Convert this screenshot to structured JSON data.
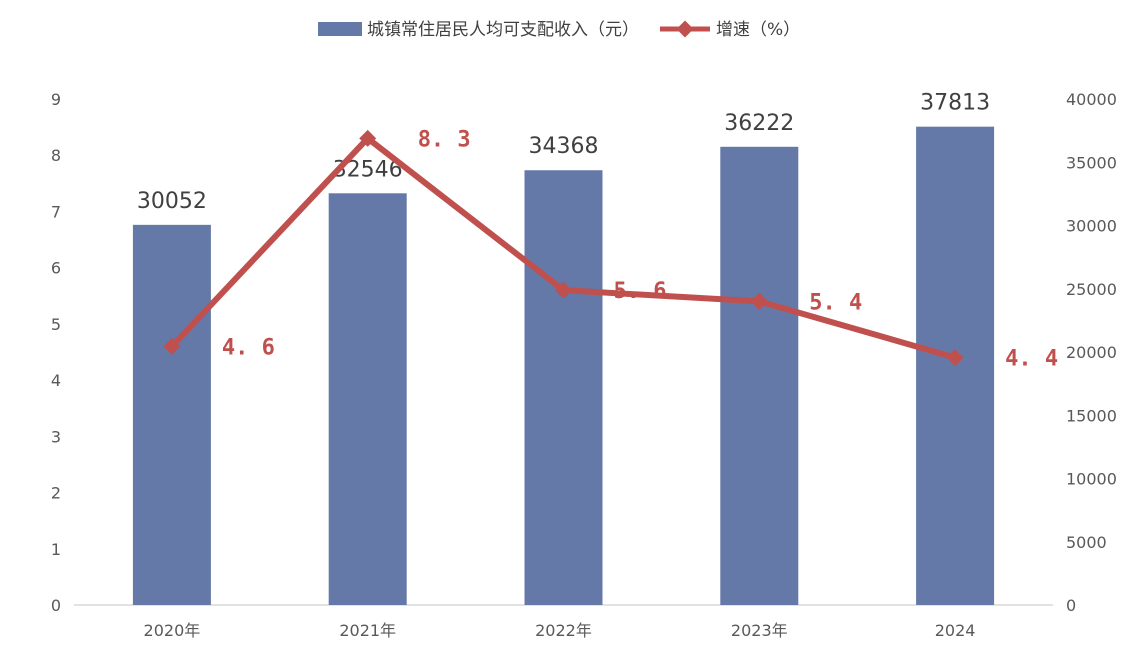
{
  "chart_data": {
    "type": "bar",
    "categories": [
      "2020年",
      "2021年",
      "2022年",
      "2023年",
      "2024"
    ],
    "series": [
      {
        "name": "城镇常住居民人均可支配收入（元）",
        "type": "bar",
        "axis": "right",
        "values": [
          30052,
          32546,
          34368,
          36222,
          37813
        ],
        "labels": [
          "30052",
          "32546",
          "34368",
          "36222",
          "37813"
        ],
        "color": "#6479A8"
      },
      {
        "name": "增速（%）",
        "type": "line",
        "axis": "left",
        "values": [
          4.6,
          8.3,
          5.6,
          5.4,
          4.4
        ],
        "labels": [
          "4. 6",
          "8. 3",
          "5. 6",
          "5. 4",
          "4. 4"
        ],
        "color": "#C0504D"
      }
    ],
    "left_axis": {
      "range": [
        0,
        9
      ],
      "ticks": [
        "0",
        "1",
        "2",
        "3",
        "4",
        "5",
        "6",
        "7",
        "8",
        "9"
      ]
    },
    "right_axis": {
      "range": [
        0,
        40000
      ],
      "ticks": [
        "0",
        "5000",
        "10000",
        "15000",
        "20000",
        "25000",
        "30000",
        "35000",
        "40000"
      ]
    },
    "legend_position": "top-center",
    "grid": false
  }
}
